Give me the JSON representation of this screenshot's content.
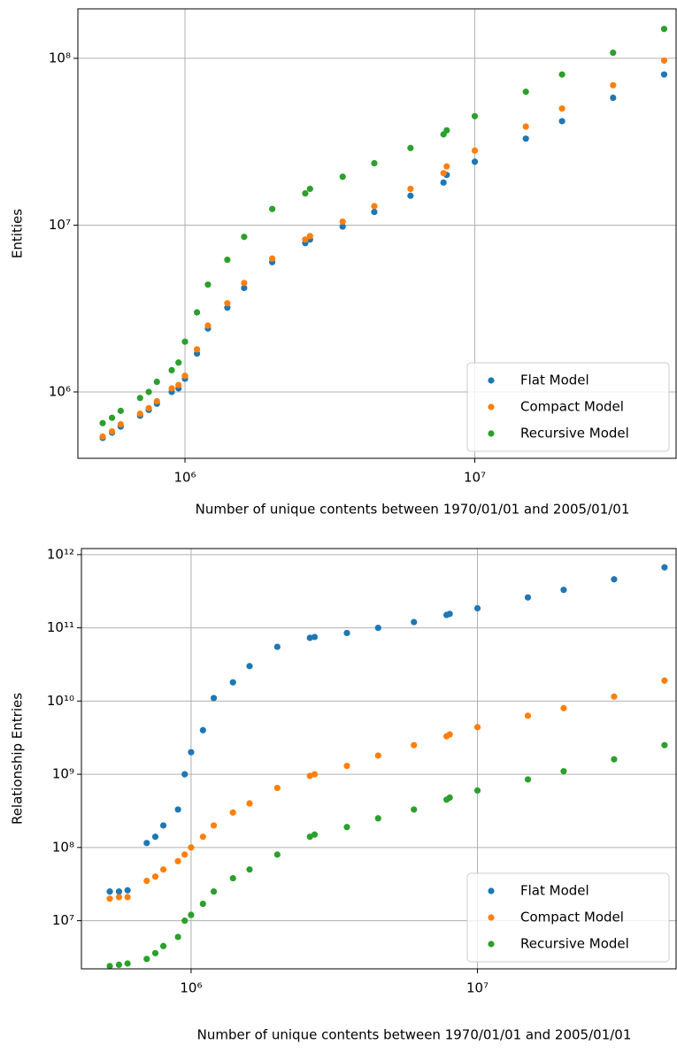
{
  "chart_data": [
    {
      "type": "scatter",
      "xlabel": "Number of unique contents between 1970/01/01 and 2005/01/01",
      "ylabel": "Entities",
      "xscale": "log",
      "yscale": "log",
      "grid": true,
      "legend": "lower right",
      "xlim": [
        427000,
        49500000
      ],
      "ylim": [
        400000,
        198000000
      ],
      "xticks": [
        {
          "value": 1000000,
          "label": "10⁶"
        },
        {
          "value": 10000000,
          "label": "10⁷"
        }
      ],
      "yticks": [
        {
          "value": 1000000,
          "label": "10⁶"
        },
        {
          "value": 10000000,
          "label": "10⁷"
        },
        {
          "value": 100000000,
          "label": "10⁸"
        }
      ],
      "x": [
        520000,
        560000,
        600000,
        700000,
        750000,
        800000,
        900000,
        950000,
        1000000,
        1100000,
        1200000,
        1400000,
        1600000,
        2000000,
        2600000,
        2700000,
        3500000,
        4500000,
        6000000,
        7800000,
        8000000,
        10000000,
        15000000,
        20000000,
        30000000,
        45000000
      ],
      "series": [
        {
          "name": "Flat Model",
          "color": "#1f77b4",
          "values": [
            530000,
            570000,
            620000,
            720000,
            780000,
            850000,
            1000000,
            1050000,
            1200000,
            1700000,
            2400000,
            3200000,
            4200000,
            6000000,
            7800000,
            8200000,
            9800000,
            12000000,
            15000000,
            18000000,
            20000000,
            24000000,
            33000000,
            42000000,
            58000000,
            80000000
          ]
        },
        {
          "name": "Compact Model",
          "color": "#ff7f0e",
          "values": [
            540000,
            580000,
            640000,
            740000,
            800000,
            880000,
            1050000,
            1100000,
            1250000,
            1800000,
            2500000,
            3400000,
            4500000,
            6300000,
            8200000,
            8600000,
            10500000,
            13000000,
            16500000,
            20500000,
            22500000,
            28000000,
            39000000,
            50000000,
            69000000,
            97000000
          ]
        },
        {
          "name": "Recursive Model",
          "color": "#2ca02c",
          "values": [
            650000,
            700000,
            770000,
            920000,
            1000000,
            1150000,
            1350000,
            1500000,
            2000000,
            3000000,
            4400000,
            6200000,
            8500000,
            12500000,
            15500000,
            16500000,
            19500000,
            23500000,
            29000000,
            35000000,
            37000000,
            45000000,
            63000000,
            80000000,
            108000000,
            150000000
          ]
        }
      ]
    },
    {
      "type": "scatter",
      "xlabel": "Number of unique contents between 1970/01/01 and 2005/01/01",
      "ylabel": "Relationship Entries",
      "xscale": "log",
      "yscale": "log",
      "grid": true,
      "legend": "lower right",
      "xlim": [
        414000,
        49400000
      ],
      "ylim": [
        2200000,
        1210000000000
      ],
      "xticks": [
        {
          "value": 1000000,
          "label": "10⁶"
        },
        {
          "value": 10000000,
          "label": "10⁷"
        }
      ],
      "yticks": [
        {
          "value": 10000000,
          "label": "10⁷"
        },
        {
          "value": 100000000,
          "label": "10⁸"
        },
        {
          "value": 1000000000,
          "label": "10⁹"
        },
        {
          "value": 10000000000,
          "label": "10¹⁰"
        },
        {
          "value": 100000000000,
          "label": "10¹¹"
        },
        {
          "value": 1000000000000,
          "label": "10¹²"
        }
      ],
      "x": [
        520000,
        560000,
        600000,
        700000,
        750000,
        800000,
        900000,
        950000,
        1000000,
        1100000,
        1200000,
        1400000,
        1600000,
        2000000,
        2600000,
        2700000,
        3500000,
        4500000,
        6000000,
        7800000,
        8000000,
        10000000,
        15000000,
        20000000,
        30000000,
        45000000
      ],
      "series": [
        {
          "name": "Flat Model",
          "color": "#1f77b4",
          "values": [
            25000000,
            25000000,
            26000000,
            115000000,
            140000000,
            200000000,
            330000000,
            1000000000,
            2000000000,
            4000000000,
            11000000000,
            18000000000,
            30000000000,
            55000000000,
            73000000000,
            75000000000,
            85000000000,
            100000000000,
            120000000000,
            150000000000,
            155000000000,
            185000000000,
            260000000000,
            330000000000,
            460000000000,
            670000000000
          ]
        },
        {
          "name": "Compact Model",
          "color": "#ff7f0e",
          "values": [
            20000000,
            21000000,
            21000000,
            35000000,
            40000000,
            50000000,
            65000000,
            80000000,
            100000000,
            140000000,
            200000000,
            300000000,
            400000000,
            650000000,
            950000000,
            1000000000,
            1300000000,
            1800000000,
            2500000000,
            3300000000,
            3500000000,
            4400000000,
            6300000000,
            8000000000,
            11500000000,
            19000000000
          ]
        },
        {
          "name": "Recursive Model",
          "color": "#2ca02c",
          "values": [
            2400000,
            2500000,
            2600000,
            3000000,
            3600000,
            4500000,
            6000000,
            10000000,
            12000000,
            17000000,
            25000000,
            38000000,
            50000000,
            80000000,
            140000000,
            150000000,
            190000000,
            250000000,
            330000000,
            450000000,
            480000000,
            600000000,
            850000000,
            1100000000,
            1600000000,
            2500000000
          ]
        }
      ]
    }
  ]
}
